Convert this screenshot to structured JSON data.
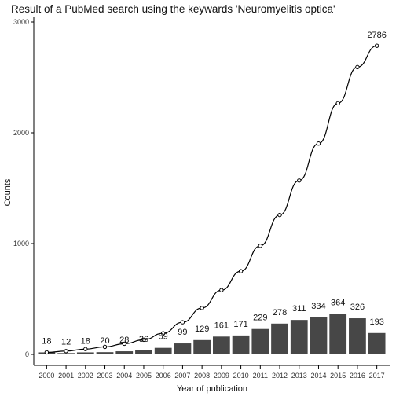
{
  "chart_data": {
    "type": "bar",
    "title": "Result of a PubMed search using the keywards 'Neuromyelitis optica'",
    "xlabel": "Year of publication",
    "ylabel": "Counts",
    "categories": [
      "2000",
      "2001",
      "2002",
      "2003",
      "2004",
      "2005",
      "2006",
      "2007",
      "2008",
      "2009",
      "2010",
      "2011",
      "2012",
      "2013",
      "2014",
      "2015",
      "2016",
      "2017"
    ],
    "ylim": [
      0,
      3000
    ],
    "y_ticks": [
      0,
      1000,
      2000,
      3000
    ],
    "grid": false,
    "series": [
      {
        "type": "bar",
        "values": [
          18,
          12,
          18,
          20,
          28,
          36,
          59,
          99,
          129,
          161,
          171,
          229,
          278,
          311,
          334,
          364,
          326,
          193
        ],
        "data_labels": [
          "18",
          "12",
          "18",
          "20",
          "28",
          "36",
          "59",
          "99",
          "129",
          "161",
          "171",
          "229",
          "278",
          "311",
          "334",
          "364",
          "326",
          "193"
        ]
      },
      {
        "type": "line",
        "values": [
          18,
          30,
          48,
          68,
          96,
          132,
          191,
          290,
          419,
          580,
          751,
          980,
          1258,
          1569,
          1903,
          2267,
          2593,
          2786
        ],
        "data_labels": [
          "2786"
        ]
      }
    ],
    "colors": {
      "bar": "#474747",
      "line": "#000000",
      "axis": "#000000"
    }
  }
}
